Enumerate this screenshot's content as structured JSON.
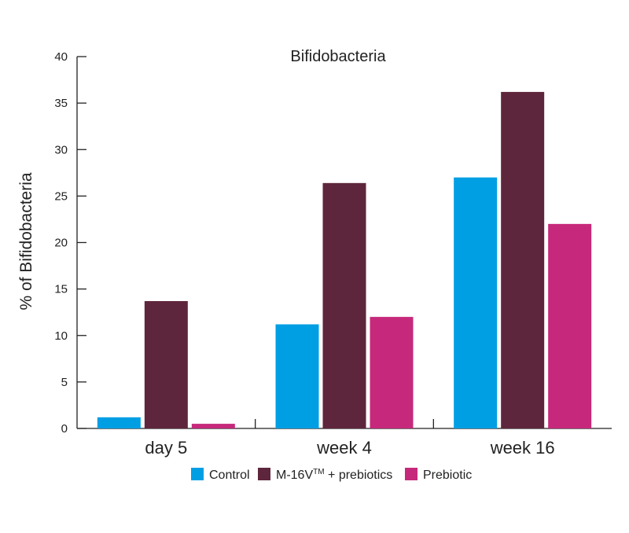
{
  "chart_data": {
    "type": "bar",
    "title": "Bifidobacteria",
    "xlabel": "",
    "ylabel": "% of Bifidobacteria",
    "ylim": [
      0,
      40
    ],
    "yticks": [
      0,
      5,
      10,
      15,
      20,
      25,
      30,
      35,
      40
    ],
    "grid": false,
    "legend_position": "bottom",
    "categories": [
      "day 5",
      "week 4",
      "week 16"
    ],
    "series": [
      {
        "name": "Control",
        "color": "#009fe3",
        "values": [
          1.2,
          11.2,
          27.0
        ]
      },
      {
        "name": "M-16V™ + prebiotics",
        "legend_main": "M-16V",
        "legend_sup": "TM",
        "legend_rest": " + prebiotics",
        "color": "#5e263c",
        "values": [
          13.7,
          26.4,
          36.2
        ]
      },
      {
        "name": "Prebiotic",
        "color": "#c6297b",
        "values": [
          0.5,
          12.0,
          22.0
        ]
      }
    ]
  }
}
